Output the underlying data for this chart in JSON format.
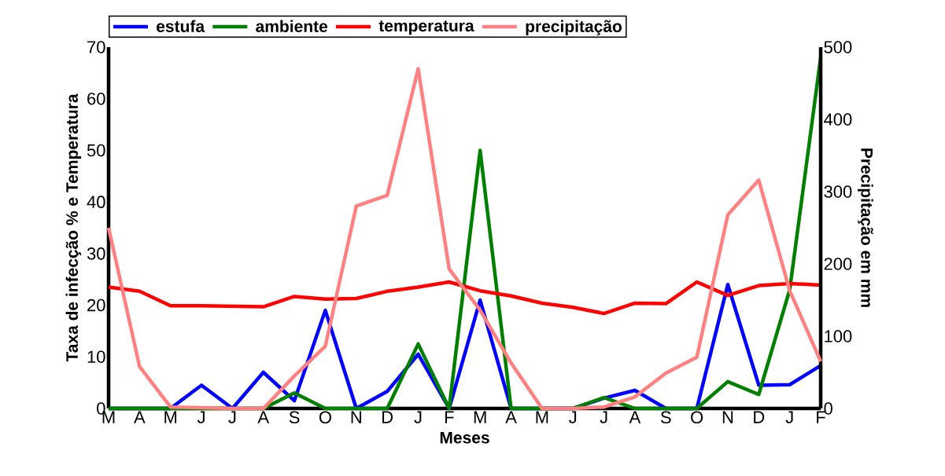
{
  "chart_data": {
    "type": "line",
    "xlabel": "Meses",
    "ylabel": "Taxa de infecção % e Temperatura",
    "y2label": "Precipitação em mm",
    "categories": [
      "M",
      "A",
      "M",
      "J",
      "J",
      "A",
      "S",
      "O",
      "N",
      "D",
      "J",
      "F",
      "M",
      "A",
      "M",
      "J",
      "J",
      "A",
      "S",
      "O",
      "N",
      "D",
      "J",
      "F"
    ],
    "series": [
      {
        "name": "estufa",
        "color": "#0000ff",
        "values": [
          0,
          0,
          0,
          4.5,
          0,
          7,
          1.5,
          19,
          0,
          3.3,
          10.5,
          0,
          21,
          0,
          0,
          0,
          2,
          3.5,
          0,
          0,
          24,
          4.5,
          4.6,
          8.3
        ]
      },
      {
        "name": "ambiente",
        "color": "#008000",
        "values": [
          0,
          0,
          0,
          0,
          0,
          0,
          3,
          0,
          0,
          0,
          12.5,
          0,
          50,
          0,
          0,
          0,
          2.1,
          0,
          0,
          0,
          5.2,
          2.7,
          23,
          68
        ]
      },
      {
        "name": "temperatura",
        "color": "#ff0000",
        "values": [
          23.5,
          22.7,
          19.9,
          19.9,
          19.8,
          19.7,
          21.7,
          21.2,
          21.3,
          22.7,
          23.5,
          24.5,
          22.8,
          21.8,
          20.4,
          19.6,
          18.4,
          20.4,
          20.3,
          24.5,
          21.9,
          23.8,
          24.2,
          23.9
        ]
      },
      {
        "name": "precipitação",
        "color": "#ff8080",
        "axis": "y2",
        "values": [
          250,
          58,
          2,
          1,
          0,
          0,
          45,
          86,
          280,
          295,
          470,
          193,
          136,
          63,
          0,
          0,
          2,
          16,
          49,
          71,
          268,
          316,
          163,
          65
        ]
      }
    ],
    "ylim": [
      0,
      70
    ],
    "yticks": [
      0,
      10,
      20,
      30,
      40,
      50,
      60,
      70
    ],
    "y2lim": [
      0,
      500
    ],
    "y2ticks": [
      0,
      100,
      200,
      300,
      400,
      500
    ],
    "legend": "top"
  }
}
